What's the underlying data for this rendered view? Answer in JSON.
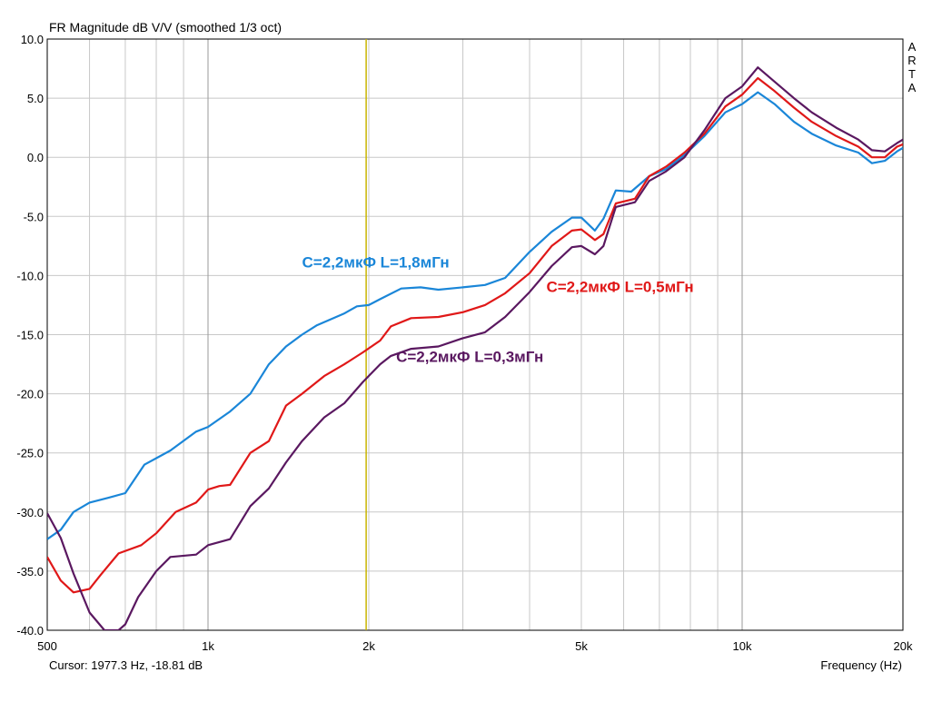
{
  "chart_data": {
    "type": "line",
    "title": "FR Magnitude dB V/V (smoothed 1/3 oct)",
    "xlabel": "Frequency (Hz)",
    "ylabel": "",
    "x_scale": "log",
    "xlim": [
      500,
      20000
    ],
    "ylim": [
      -40,
      10
    ],
    "x_ticks": [
      {
        "value": 500,
        "label": "500"
      },
      {
        "value": 1000,
        "label": "1k"
      },
      {
        "value": 2000,
        "label": "2k"
      },
      {
        "value": 5000,
        "label": "5k"
      },
      {
        "value": 10000,
        "label": "10k"
      },
      {
        "value": 20000,
        "label": "20k"
      }
    ],
    "y_ticks": [
      10,
      5,
      0,
      -5,
      -10,
      -15,
      -20,
      -25,
      -30,
      -35,
      -40
    ],
    "y_tick_labels": [
      "10.0",
      "5.0",
      "0.0",
      "-5.0",
      "-10.0",
      "-15.0",
      "-20.0",
      "-25.0",
      "-30.0",
      "-35.0",
      "-40.0"
    ],
    "grid": true,
    "cursor": {
      "frequency": 1977.3,
      "readout": "Cursor: 1977.3 Hz, -18.81 dB",
      "color": "#c8b400"
    },
    "watermark": "ARTA",
    "series": [
      {
        "name": "C=2,2мкФ L=1,8мГн",
        "color": "#1a86d8",
        "label_freq": 1500,
        "label_db": -9.3,
        "points": [
          [
            500,
            -32.3
          ],
          [
            530,
            -31.5
          ],
          [
            560,
            -30
          ],
          [
            600,
            -29.2
          ],
          [
            650,
            -28.8
          ],
          [
            700,
            -28.4
          ],
          [
            760,
            -26
          ],
          [
            850,
            -24.8
          ],
          [
            950,
            -23.2
          ],
          [
            1000,
            -22.8
          ],
          [
            1100,
            -21.5
          ],
          [
            1200,
            -20
          ],
          [
            1300,
            -17.5
          ],
          [
            1400,
            -16
          ],
          [
            1500,
            -15
          ],
          [
            1600,
            -14.2
          ],
          [
            1800,
            -13.2
          ],
          [
            1900,
            -12.6
          ],
          [
            2000,
            -12.5
          ],
          [
            2100,
            -12
          ],
          [
            2300,
            -11.1
          ],
          [
            2500,
            -11
          ],
          [
            2700,
            -11.2
          ],
          [
            3000,
            -11
          ],
          [
            3300,
            -10.8
          ],
          [
            3600,
            -10.2
          ],
          [
            4000,
            -8
          ],
          [
            4400,
            -6.3
          ],
          [
            4800,
            -5.1
          ],
          [
            5000,
            -5.1
          ],
          [
            5300,
            -6.2
          ],
          [
            5500,
            -5.2
          ],
          [
            5800,
            -2.8
          ],
          [
            6200,
            -2.9
          ],
          [
            6700,
            -1.6
          ],
          [
            7200,
            -1
          ],
          [
            7800,
            0.2
          ],
          [
            8500,
            1.8
          ],
          [
            9300,
            3.8
          ],
          [
            10000,
            4.5
          ],
          [
            10700,
            5.5
          ],
          [
            11500,
            4.5
          ],
          [
            12500,
            3
          ],
          [
            13500,
            2
          ],
          [
            15000,
            1
          ],
          [
            16500,
            0.4
          ],
          [
            17500,
            -0.5
          ],
          [
            18500,
            -0.3
          ],
          [
            19500,
            0.5
          ],
          [
            20000,
            0.8
          ]
        ]
      },
      {
        "name": "C=2,2мкФ L=0,5мГн",
        "color": "#e01818",
        "label_freq": 4300,
        "label_db": -11.4,
        "points": [
          [
            500,
            -33.8
          ],
          [
            530,
            -35.8
          ],
          [
            560,
            -36.8
          ],
          [
            600,
            -36.5
          ],
          [
            630,
            -35.3
          ],
          [
            680,
            -33.5
          ],
          [
            750,
            -32.8
          ],
          [
            800,
            -31.8
          ],
          [
            870,
            -30
          ],
          [
            950,
            -29.2
          ],
          [
            1000,
            -28.1
          ],
          [
            1050,
            -27.8
          ],
          [
            1100,
            -27.7
          ],
          [
            1200,
            -25
          ],
          [
            1300,
            -24
          ],
          [
            1400,
            -21
          ],
          [
            1500,
            -20
          ],
          [
            1650,
            -18.5
          ],
          [
            1800,
            -17.5
          ],
          [
            1950,
            -16.5
          ],
          [
            2100,
            -15.5
          ],
          [
            2200,
            -14.3
          ],
          [
            2400,
            -13.6
          ],
          [
            2700,
            -13.5
          ],
          [
            3000,
            -13.1
          ],
          [
            3300,
            -12.5
          ],
          [
            3600,
            -11.5
          ],
          [
            4000,
            -9.8
          ],
          [
            4400,
            -7.5
          ],
          [
            4800,
            -6.2
          ],
          [
            5000,
            -6.1
          ],
          [
            5300,
            -7
          ],
          [
            5500,
            -6.5
          ],
          [
            5800,
            -3.9
          ],
          [
            6300,
            -3.5
          ],
          [
            6700,
            -1.6
          ],
          [
            7200,
            -0.8
          ],
          [
            7800,
            0.4
          ],
          [
            8500,
            2
          ],
          [
            9300,
            4.3
          ],
          [
            10000,
            5.3
          ],
          [
            10700,
            6.7
          ],
          [
            11500,
            5.6
          ],
          [
            12500,
            4.2
          ],
          [
            13500,
            3
          ],
          [
            15000,
            1.8
          ],
          [
            16500,
            0.9
          ],
          [
            17500,
            0
          ],
          [
            18500,
            0
          ],
          [
            19500,
            0.9
          ],
          [
            20000,
            1.1
          ]
        ]
      },
      {
        "name": "C=2,2мкФ L=0,3мГн",
        "color": "#5a1860",
        "label_freq": 2250,
        "label_db": -17.3,
        "points": [
          [
            500,
            -30.1
          ],
          [
            530,
            -32.2
          ],
          [
            560,
            -35.2
          ],
          [
            600,
            -38.5
          ],
          [
            640,
            -40
          ],
          [
            680,
            -40
          ],
          [
            700,
            -39.5
          ],
          [
            740,
            -37.2
          ],
          [
            800,
            -35
          ],
          [
            850,
            -33.8
          ],
          [
            950,
            -33.6
          ],
          [
            1000,
            -32.8
          ],
          [
            1100,
            -32.3
          ],
          [
            1200,
            -29.5
          ],
          [
            1300,
            -28
          ],
          [
            1400,
            -25.8
          ],
          [
            1500,
            -24
          ],
          [
            1650,
            -22
          ],
          [
            1800,
            -20.8
          ],
          [
            1950,
            -19
          ],
          [
            2100,
            -17.5
          ],
          [
            2200,
            -16.8
          ],
          [
            2400,
            -16.2
          ],
          [
            2700,
            -16
          ],
          [
            3000,
            -15.3
          ],
          [
            3300,
            -14.8
          ],
          [
            3600,
            -13.5
          ],
          [
            4000,
            -11.4
          ],
          [
            4400,
            -9.2
          ],
          [
            4800,
            -7.6
          ],
          [
            5000,
            -7.5
          ],
          [
            5300,
            -8.2
          ],
          [
            5500,
            -7.5
          ],
          [
            5800,
            -4.2
          ],
          [
            6300,
            -3.8
          ],
          [
            6700,
            -2
          ],
          [
            7200,
            -1.2
          ],
          [
            7800,
            0
          ],
          [
            8500,
            2.3
          ],
          [
            9300,
            5
          ],
          [
            10000,
            6
          ],
          [
            10700,
            7.6
          ],
          [
            11500,
            6.4
          ],
          [
            12500,
            5
          ],
          [
            13500,
            3.8
          ],
          [
            15000,
            2.5
          ],
          [
            16500,
            1.5
          ],
          [
            17500,
            0.6
          ],
          [
            18500,
            0.5
          ],
          [
            19500,
            1.2
          ],
          [
            20000,
            1.5
          ]
        ]
      }
    ]
  }
}
